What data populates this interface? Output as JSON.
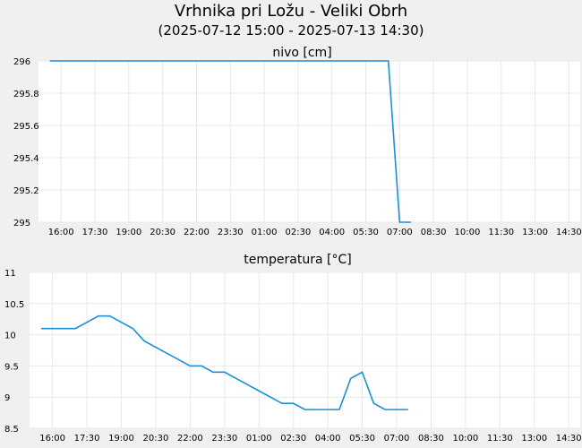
{
  "title": "Vrhnika pri Ložu - Veliki Obrh",
  "subtitle": "(2025-07-12 15:00 - 2025-07-13 14:30)",
  "colors": {
    "line": "#1a8fd8",
    "grid": "#e8e8e8",
    "background": "#f0f0f0",
    "plot": "#ffffff"
  },
  "chart_data": [
    {
      "type": "line",
      "title": "nivo [cm]",
      "xlabel": "",
      "ylabel": "",
      "ylim": [
        295,
        296
      ],
      "yticks": [
        295,
        295.2,
        295.4,
        295.6,
        295.8,
        296
      ],
      "ytick_labels": [
        "295",
        "295.2",
        "295.4",
        "295.6",
        "295.8",
        "296"
      ],
      "xlim": [
        "2025-07-12 15:00",
        "2025-07-13 15:00"
      ],
      "xticks": [
        "2025-07-12 16:00",
        "2025-07-12 17:30",
        "2025-07-12 19:00",
        "2025-07-12 20:30",
        "2025-07-12 22:00",
        "2025-07-12 23:30",
        "2025-07-13 01:00",
        "2025-07-13 02:30",
        "2025-07-13 04:00",
        "2025-07-13 05:30",
        "2025-07-13 07:00",
        "2025-07-13 08:30",
        "2025-07-13 10:00",
        "2025-07-13 11:30",
        "2025-07-13 13:00",
        "2025-07-13 14:30"
      ],
      "xtick_labels": [
        "16:00",
        "17:30",
        "19:00",
        "20:30",
        "22:00",
        "23:30",
        "01:00",
        "02:30",
        "04:00",
        "05:30",
        "07:00",
        "08:30",
        "10:00",
        "11:30",
        "13:00",
        "14:30"
      ],
      "grid": true,
      "series": [
        {
          "x": [
            "2025-07-12 15:30",
            "2025-07-13 06:30",
            "2025-07-13 07:00",
            "2025-07-13 07:30"
          ],
          "values": [
            296,
            296,
            295,
            295
          ]
        }
      ]
    },
    {
      "type": "line",
      "title": "temperatura [°C]",
      "xlabel": "",
      "ylabel": "",
      "ylim": [
        8.5,
        11
      ],
      "yticks": [
        8.5,
        9,
        9.5,
        10,
        10.5,
        11
      ],
      "ytick_labels": [
        "8.5",
        "9",
        "9.5",
        "10",
        "10.5",
        "11"
      ],
      "xlim": [
        "2025-07-12 15:00",
        "2025-07-13 15:00"
      ],
      "xticks": [
        "2025-07-12 16:00",
        "2025-07-12 17:30",
        "2025-07-12 19:00",
        "2025-07-12 20:30",
        "2025-07-12 22:00",
        "2025-07-12 23:30",
        "2025-07-13 01:00",
        "2025-07-13 02:30",
        "2025-07-13 04:00",
        "2025-07-13 05:30",
        "2025-07-13 07:00",
        "2025-07-13 08:30",
        "2025-07-13 10:00",
        "2025-07-13 11:30",
        "2025-07-13 13:00",
        "2025-07-13 14:30"
      ],
      "xtick_labels": [
        "16:00",
        "17:30",
        "19:00",
        "20:30",
        "22:00",
        "23:30",
        "01:00",
        "02:30",
        "04:00",
        "05:30",
        "07:00",
        "08:30",
        "10:00",
        "11:30",
        "13:00",
        "14:30"
      ],
      "grid": true,
      "series": [
        {
          "x": [
            "2025-07-12 15:30",
            "2025-07-12 16:00",
            "2025-07-12 16:30",
            "2025-07-12 17:00",
            "2025-07-12 17:30",
            "2025-07-12 18:00",
            "2025-07-12 18:30",
            "2025-07-12 19:00",
            "2025-07-12 19:30",
            "2025-07-12 20:00",
            "2025-07-12 20:30",
            "2025-07-12 21:00",
            "2025-07-12 21:30",
            "2025-07-12 22:00",
            "2025-07-12 22:30",
            "2025-07-12 23:00",
            "2025-07-12 23:30",
            "2025-07-13 00:00",
            "2025-07-13 00:30",
            "2025-07-13 01:00",
            "2025-07-13 01:30",
            "2025-07-13 02:00",
            "2025-07-13 02:30",
            "2025-07-13 03:00",
            "2025-07-13 03:30",
            "2025-07-13 04:00",
            "2025-07-13 04:30",
            "2025-07-13 05:00",
            "2025-07-13 05:30",
            "2025-07-13 06:00",
            "2025-07-13 06:30",
            "2025-07-13 07:00",
            "2025-07-13 07:30"
          ],
          "values": [
            10.1,
            10.1,
            10.1,
            10.1,
            10.2,
            10.3,
            10.3,
            10.2,
            10.1,
            9.9,
            9.8,
            9.7,
            9.6,
            9.5,
            9.5,
            9.4,
            9.4,
            9.3,
            9.2,
            9.1,
            9.0,
            8.9,
            8.9,
            8.8,
            8.8,
            8.8,
            8.8,
            9.3,
            9.4,
            8.9,
            8.8,
            8.8,
            8.8
          ]
        }
      ]
    }
  ]
}
